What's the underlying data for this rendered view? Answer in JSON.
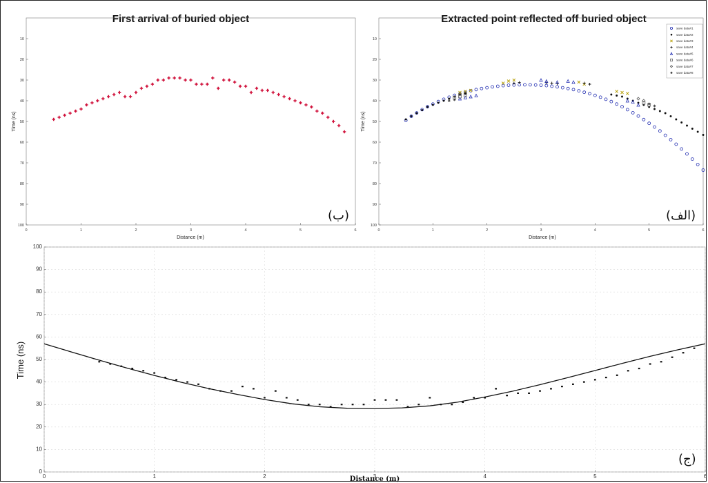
{
  "chart_data": [
    {
      "id": "b",
      "type": "scatter",
      "title": "First arrival of buried object",
      "panel_label": "(ب)",
      "xlabel": "Distance (m)",
      "ylabel": "Time (ns)",
      "xlim": [
        0,
        6
      ],
      "ylim": [
        0,
        100
      ],
      "y_inverted": true,
      "xticks": [
        "0",
        "1",
        "2",
        "3",
        "4",
        "5",
        "6"
      ],
      "yticks": [
        "10",
        "20",
        "30",
        "40",
        "50",
        "60",
        "70",
        "80",
        "90",
        "100"
      ],
      "marker_color": "#d0103a",
      "series": [
        {
          "x": [
            0.5,
            0.6,
            0.7,
            0.8,
            0.9,
            1.0,
            1.1,
            1.2,
            1.3,
            1.4,
            1.5,
            1.6,
            1.7,
            1.8,
            1.9,
            2.0,
            2.1,
            2.2,
            2.3,
            2.4,
            2.5,
            2.6,
            2.7,
            2.8,
            2.9,
            3.0,
            3.1,
            3.2,
            3.3,
            3.4,
            3.5,
            3.6,
            3.7,
            3.8,
            3.9,
            4.0,
            4.1,
            4.2,
            4.3,
            4.4,
            4.5,
            4.6,
            4.7,
            4.8,
            4.9,
            5.0,
            5.1,
            5.2,
            5.3,
            5.4,
            5.5,
            5.6,
            5.7,
            5.8
          ],
          "y": [
            49,
            48,
            47,
            46,
            45,
            44,
            42,
            41,
            40,
            39,
            38,
            37,
            36,
            38,
            38,
            36,
            34,
            33,
            32,
            30,
            30,
            29,
            29,
            29,
            30,
            30,
            32,
            32,
            32,
            29,
            34,
            30,
            30,
            31,
            33,
            33,
            36,
            34,
            35,
            35,
            36,
            37,
            38,
            39,
            40,
            41,
            42,
            43,
            45,
            46,
            48,
            50,
            52,
            55
          ]
        }
      ]
    },
    {
      "id": "alef",
      "type": "scatter",
      "title": "Extracted point reflected off buried object",
      "panel_label": "(الف)",
      "xlabel": "Distance (m)",
      "ylabel": "Time (ns)",
      "xlim": [
        0,
        6
      ],
      "ylim": [
        0,
        100
      ],
      "y_inverted": true,
      "xticks": [
        "0",
        "1",
        "2",
        "3",
        "4",
        "5",
        "6"
      ],
      "yticks": [
        "10",
        "20",
        "30",
        "40",
        "50",
        "60",
        "70",
        "80",
        "90",
        "100"
      ],
      "legend_position": "top-right",
      "series": [
        {
          "name": "save data#1",
          "marker": "circle",
          "color": "#1f2bb0",
          "x": [
            0.5,
            0.6,
            0.7,
            0.8,
            0.9,
            1.0,
            1.1,
            1.2,
            1.3,
            1.4,
            1.5,
            1.6,
            1.7,
            1.8,
            1.9,
            2.0,
            2.1,
            2.2,
            2.3,
            2.4,
            2.5,
            2.6,
            2.7,
            2.8,
            2.9,
            3.0,
            3.1,
            3.2,
            3.3,
            3.4,
            3.5,
            3.6,
            3.7,
            3.8,
            3.9,
            4.0,
            4.1,
            4.2,
            4.3,
            4.4,
            4.5,
            4.6,
            4.7,
            4.8,
            4.9,
            5.0,
            5.1,
            5.2,
            5.3,
            5.4,
            5.5,
            5.6,
            5.7,
            5.8,
            5.9,
            6.0
          ],
          "y": [
            49.5,
            47.5,
            45.9,
            44.3,
            42.9,
            41.6,
            40.4,
            39.3,
            38.3,
            37.4,
            36.6,
            35.9,
            35.2,
            34.6,
            34.1,
            33.7,
            33.3,
            33.0,
            32.7,
            32.5,
            32.4,
            32.3,
            32.3,
            32.3,
            32.4,
            32.5,
            32.7,
            33.0,
            33.3,
            33.7,
            34.1,
            34.6,
            35.2,
            35.9,
            36.6,
            37.4,
            38.3,
            39.3,
            40.4,
            41.6,
            42.9,
            44.3,
            45.8,
            47.4,
            49.1,
            50.9,
            52.7,
            54.6,
            56.7,
            58.8,
            61.0,
            63.3,
            65.7,
            68.2,
            70.8,
            73.5
          ]
        },
        {
          "name": "save data#2",
          "marker": "dot",
          "color": "#111111",
          "x": [
            0.5,
            0.6,
            0.7,
            0.8,
            0.9,
            1.0,
            1.1,
            1.2,
            1.3,
            1.4,
            1.5,
            1.6,
            4.3,
            4.4,
            4.5,
            4.6,
            4.7,
            4.8,
            4.9,
            5.0,
            5.1,
            5.2,
            5.3,
            5.4,
            5.5,
            5.6,
            5.7,
            5.8,
            5.9,
            6.0
          ],
          "y": [
            49,
            47.5,
            46,
            44.5,
            43,
            42,
            41,
            40,
            39,
            38,
            37,
            36.5,
            37,
            37.5,
            38,
            39,
            40,
            41,
            42,
            43,
            44,
            45,
            46,
            47.5,
            49,
            50.5,
            52,
            53.5,
            55,
            56.5
          ]
        },
        {
          "name": "save data#3",
          "marker": "x",
          "color": "#b8a10a",
          "x": [
            1.5,
            1.6,
            1.7,
            2.3,
            2.4,
            2.5,
            3.7,
            3.8,
            4.4,
            4.5,
            4.6
          ],
          "y": [
            36,
            35.5,
            35,
            31.5,
            30.5,
            30,
            31,
            32,
            35.5,
            36,
            36.5
          ]
        },
        {
          "name": "save data#4",
          "marker": "plus",
          "color": "#1a1a1a",
          "x": [
            2.5,
            2.6,
            3.1,
            3.2,
            3.3,
            3.8,
            3.9
          ],
          "y": [
            31.5,
            31.2,
            31.3,
            31.5,
            31.8,
            31.5,
            32
          ]
        },
        {
          "name": "save data#5",
          "marker": "triangle",
          "color": "#1f2bb0",
          "x": [
            1.5,
            1.6,
            1.7,
            1.8,
            3.0,
            3.1,
            3.3,
            3.5,
            3.6,
            4.6,
            4.7,
            4.8
          ],
          "y": [
            39,
            38.5,
            38,
            37.5,
            30,
            30.5,
            31,
            30.5,
            31,
            40,
            40.5,
            42
          ]
        },
        {
          "name": "save data#6",
          "marker": "square",
          "color": "#666666",
          "x": [
            1.4,
            1.5,
            1.6,
            4.9,
            5.0
          ],
          "y": [
            38.5,
            38,
            37.5,
            41,
            42
          ]
        },
        {
          "name": "save data#7",
          "marker": "diamond",
          "color": "#555555",
          "x": [
            1.5,
            1.6,
            4.8,
            4.9
          ],
          "y": [
            37,
            36.5,
            39,
            40
          ]
        },
        {
          "name": "save data#8",
          "marker": "star",
          "color": "#333333",
          "x": [
            1.3,
            1.4,
            5.0,
            5.1
          ],
          "y": [
            40,
            39.5,
            41.5,
            42.5
          ]
        }
      ]
    },
    {
      "id": "jim",
      "type": "scatter",
      "title": "",
      "panel_label": "(ج)",
      "xlabel": "Distance (m)",
      "ylabel": "Time (ns)",
      "xlim": [
        0,
        6
      ],
      "ylim": [
        0,
        100
      ],
      "xticks": [
        "0",
        "1",
        "2",
        "3",
        "4",
        "5",
        "6"
      ],
      "yticks": [
        "0",
        "10",
        "20",
        "30",
        "40",
        "50",
        "60",
        "70",
        "80",
        "90",
        "100"
      ],
      "series": [
        {
          "marker": "dot",
          "color": "#111111",
          "x": [
            0.5,
            0.6,
            0.7,
            0.8,
            0.9,
            1.0,
            1.1,
            1.2,
            1.3,
            1.4,
            1.5,
            1.6,
            1.7,
            1.8,
            1.9,
            2.0,
            2.1,
            2.2,
            2.3,
            2.4,
            2.5,
            2.6,
            2.7,
            2.8,
            2.9,
            3.0,
            3.1,
            3.2,
            3.3,
            3.4,
            3.5,
            3.6,
            3.7,
            3.8,
            3.9,
            4.0,
            4.1,
            4.2,
            4.3,
            4.4,
            4.5,
            4.6,
            4.7,
            4.8,
            4.9,
            5.0,
            5.1,
            5.2,
            5.3,
            5.4,
            5.5,
            5.6,
            5.7,
            5.8,
            5.9
          ],
          "y": [
            49,
            48,
            47,
            46,
            45,
            44,
            42,
            41,
            40,
            39,
            37,
            36,
            36,
            38,
            37,
            33,
            36,
            33,
            32,
            30,
            30,
            29,
            30,
            30,
            30,
            32,
            32,
            32,
            29,
            30,
            33,
            30,
            30,
            31,
            33,
            33,
            37,
            34,
            35,
            35,
            36,
            37,
            38,
            39,
            40,
            41,
            42,
            43,
            45,
            46,
            48,
            49,
            51,
            53,
            55
          ]
        },
        {
          "name": "fitted hyperbola",
          "type": "line",
          "color": "#111111",
          "x": [
            0,
            0.25,
            0.5,
            0.75,
            1.0,
            1.25,
            1.5,
            1.75,
            2.0,
            2.25,
            2.5,
            2.75,
            3.0,
            3.25,
            3.5,
            3.75,
            4.0,
            4.25,
            4.5,
            4.75,
            5.0,
            5.25,
            5.5,
            5.75,
            6.0
          ],
          "y": [
            57,
            53.3,
            49.7,
            46.2,
            42.9,
            39.8,
            37.0,
            34.5,
            32.2,
            30.3,
            29.0,
            28.3,
            28.2,
            28.5,
            29.4,
            31.0,
            33.3,
            35.9,
            38.8,
            41.9,
            45.1,
            48.3,
            51.4,
            54.3,
            57
          ]
        }
      ]
    }
  ]
}
